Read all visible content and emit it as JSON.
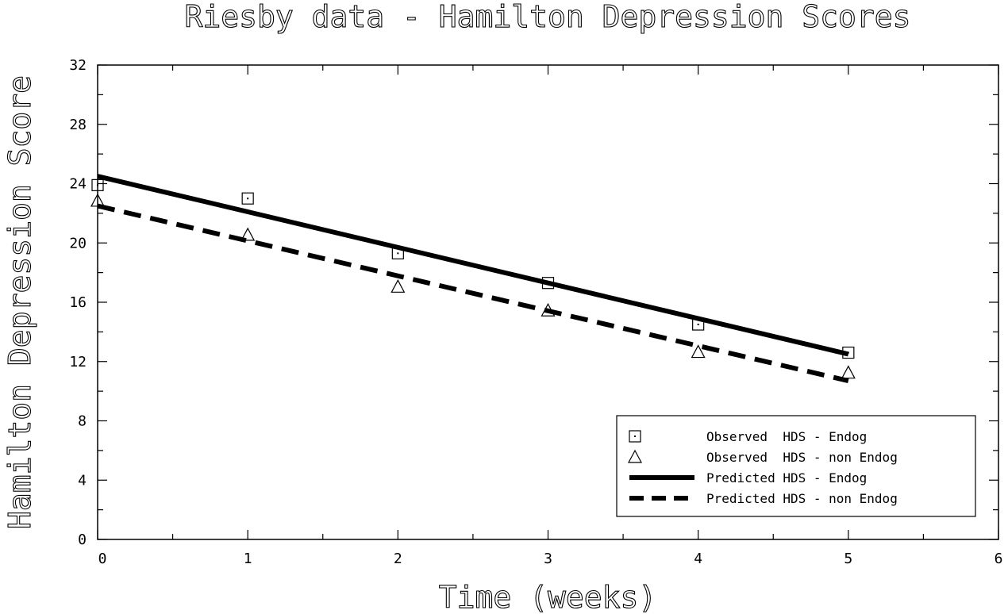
{
  "chart_data": {
    "type": "line",
    "title": "Riesby data - Hamilton Depression Scores",
    "xlabel": "Time (weeks)",
    "ylabel": "Hamilton Depression Score",
    "xlim": [
      0,
      6
    ],
    "ylim": [
      0,
      32
    ],
    "xticks": [
      0,
      1,
      2,
      3,
      4,
      5,
      6
    ],
    "yticks": [
      0,
      4,
      8,
      12,
      16,
      20,
      24,
      28,
      32
    ],
    "legend_position": "bottom-right",
    "grid": false,
    "series": [
      {
        "name": "Observed  HDS - Endog",
        "kind": "scatter",
        "marker": "square",
        "x": [
          0,
          1,
          2,
          3,
          4,
          5
        ],
        "y": [
          23.9,
          23.0,
          19.3,
          17.3,
          14.5,
          12.6
        ]
      },
      {
        "name": "Observed  HDS - non Endog",
        "kind": "scatter",
        "marker": "triangle",
        "x": [
          0,
          1,
          2,
          3,
          4,
          5
        ],
        "y": [
          22.8,
          20.5,
          17.0,
          15.4,
          12.6,
          11.2
        ]
      },
      {
        "name": "Predicted HDS - Endog",
        "kind": "line",
        "style": "solid",
        "x": [
          0,
          5
        ],
        "y": [
          24.5,
          12.5
        ]
      },
      {
        "name": "Predicted HDS - non Endog",
        "kind": "line",
        "style": "dashed",
        "x": [
          0,
          5
        ],
        "y": [
          22.5,
          10.7
        ]
      }
    ]
  }
}
